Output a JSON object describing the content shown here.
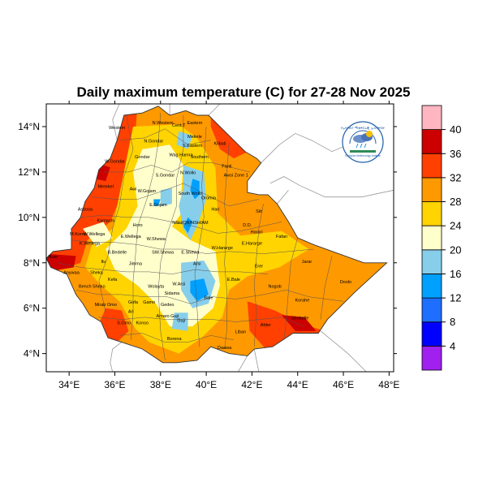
{
  "title": "Daily maximum temperature (C) for 27-28 Nov 2025",
  "map": {
    "x_ticks": [
      "34°E",
      "36°E",
      "38°E",
      "40°E",
      "42°E",
      "44°E",
      "46°E",
      "48°E"
    ],
    "y_ticks": [
      "14°N",
      "12°N",
      "10°N",
      "8°N",
      "6°N",
      "4°N"
    ],
    "lon_range": [
      33,
      48.2
    ],
    "lat_range": [
      3.2,
      15
    ],
    "ocean_color": "#ffffff",
    "border_color": "#888888"
  },
  "colorbar": {
    "labels": [
      "4",
      "8",
      "12",
      "16",
      "20",
      "24",
      "28",
      "32",
      "36",
      "40"
    ],
    "colors": [
      "#a020f0",
      "#0000ff",
      "#1e6fff",
      "#00a0ff",
      "#87ceeb",
      "#ffffcc",
      "#ffd400",
      "#ff9900",
      "#ff4000",
      "#cc0000",
      "#ffb6c1"
    ]
  },
  "logo": {
    "text_top": "የኢትዮጵያ ሚቲዎሮሎጂ ኢንስቲትዩት",
    "text_bottom": "Ethiopian Meteorology Institute",
    "icon": "weather-logo-icon"
  },
  "regions": [
    {
      "name": "Western",
      "lon": 36.1,
      "lat": 13.9
    },
    {
      "name": "N.Western",
      "lon": 38.1,
      "lat": 14.1
    },
    {
      "name": "Cent.T",
      "lon": 38.8,
      "lat": 14.0
    },
    {
      "name": "Eastern",
      "lon": 39.5,
      "lat": 14.1
    },
    {
      "name": "Mekele",
      "lon": 39.5,
      "lat": 13.5
    },
    {
      "name": "S.Eastern",
      "lon": 39.4,
      "lat": 13.1
    },
    {
      "name": "N.Gondar",
      "lon": 37.7,
      "lat": 13.3
    },
    {
      "name": "Kilbati",
      "lon": 40.6,
      "lat": 13.2
    },
    {
      "name": "Gondar",
      "lon": 37.2,
      "lat": 12.6
    },
    {
      "name": "Wag Hamra",
      "lon": 38.9,
      "lat": 12.7
    },
    {
      "name": "Southern",
      "lon": 39.7,
      "lat": 12.6
    },
    {
      "name": "Fanti",
      "lon": 40.9,
      "lat": 12.2
    },
    {
      "name": "Metekel",
      "lon": 35.6,
      "lat": 11.3
    },
    {
      "name": "W.Gondar",
      "lon": 36.0,
      "lat": 12.4
    },
    {
      "name": "S.Gondar",
      "lon": 38.2,
      "lat": 11.8
    },
    {
      "name": "N.Wollo",
      "lon": 39.2,
      "lat": 11.9
    },
    {
      "name": "Awsi Zone 1",
      "lon": 41.3,
      "lat": 11.8
    },
    {
      "name": "Awi",
      "lon": 36.8,
      "lat": 11.2
    },
    {
      "name": "W.Gojam",
      "lon": 37.4,
      "lat": 11.1
    },
    {
      "name": "South Wollo",
      "lon": 39.3,
      "lat": 11.0
    },
    {
      "name": "Oromia",
      "lon": 40.1,
      "lat": 10.8
    },
    {
      "name": "Assosa",
      "lon": 34.7,
      "lat": 10.3
    },
    {
      "name": "E.Gojam",
      "lon": 37.9,
      "lat": 10.5
    },
    {
      "name": "Hari",
      "lon": 40.4,
      "lat": 10.3
    },
    {
      "name": "Siti",
      "lon": 42.3,
      "lat": 10.2
    },
    {
      "name": "Kamashi",
      "lon": 35.6,
      "lat": 9.8
    },
    {
      "name": "Horo",
      "lon": 37.0,
      "lat": 9.6
    },
    {
      "name": "NSH/OR/NSH/AM",
      "lon": 39.3,
      "lat": 9.7
    },
    {
      "name": "D.D.",
      "lon": 41.8,
      "lat": 9.6
    },
    {
      "name": "Harari",
      "lon": 42.2,
      "lat": 9.3
    },
    {
      "name": "M.Komo",
      "lon": 34.4,
      "lat": 9.2
    },
    {
      "name": "W.Wellega",
      "lon": 35.1,
      "lat": 9.2
    },
    {
      "name": "E.Wellega",
      "lon": 36.7,
      "lat": 9.1
    },
    {
      "name": "W.Shewa",
      "lon": 37.8,
      "lat": 9.0
    },
    {
      "name": "Fafan",
      "lon": 43.3,
      "lat": 9.1
    },
    {
      "name": "K.Wellega",
      "lon": 34.9,
      "lat": 8.8
    },
    {
      "name": "W.Hararge",
      "lon": 40.7,
      "lat": 8.6
    },
    {
      "name": "E.Hararge",
      "lon": 42.0,
      "lat": 8.8
    },
    {
      "name": "B.Bedelle",
      "lon": 36.1,
      "lat": 8.4
    },
    {
      "name": "SW.Shewa",
      "lon": 38.1,
      "lat": 8.4
    },
    {
      "name": "E.Shewa",
      "lon": 39.3,
      "lat": 8.4
    },
    {
      "name": "Nuer",
      "lon": 33.3,
      "lat": 8.2
    },
    {
      "name": "Ilu",
      "lon": 35.5,
      "lat": 8.0
    },
    {
      "name": "Jimma",
      "lon": 36.9,
      "lat": 7.9
    },
    {
      "name": "Jarar",
      "lon": 44.4,
      "lat": 8.0
    },
    {
      "name": "Erer",
      "lon": 42.3,
      "lat": 7.8
    },
    {
      "name": "Anywaa",
      "lon": 34.1,
      "lat": 7.5
    },
    {
      "name": "Sheka",
      "lon": 35.2,
      "lat": 7.5
    },
    {
      "name": "Arsi",
      "lon": 39.6,
      "lat": 7.9
    },
    {
      "name": "Kefa",
      "lon": 35.9,
      "lat": 7.2
    },
    {
      "name": "Bench Sheko",
      "lon": 35.0,
      "lat": 6.9
    },
    {
      "name": "Wolayta",
      "lon": 37.8,
      "lat": 6.9
    },
    {
      "name": "W.Arsi",
      "lon": 38.8,
      "lat": 7.0
    },
    {
      "name": "E.Bale",
      "lon": 41.2,
      "lat": 7.2
    },
    {
      "name": "Nogob",
      "lon": 43.0,
      "lat": 6.9
    },
    {
      "name": "Doolo",
      "lon": 46.1,
      "lat": 7.1
    },
    {
      "name": "Sidama",
      "lon": 38.5,
      "lat": 6.6
    },
    {
      "name": "Bale",
      "lon": 40.1,
      "lat": 6.4
    },
    {
      "name": "Mirab Omo",
      "lon": 35.6,
      "lat": 6.1
    },
    {
      "name": "Gofa",
      "lon": 36.8,
      "lat": 6.2
    },
    {
      "name": "Gamo",
      "lon": 37.5,
      "lat": 6.2
    },
    {
      "name": "Gedeo",
      "lon": 38.3,
      "lat": 6.1
    },
    {
      "name": "Korahe",
      "lon": 44.2,
      "lat": 6.3
    },
    {
      "name": "Ari",
      "lon": 36.7,
      "lat": 5.8
    },
    {
      "name": "Amaro Guji",
      "lon": 38.3,
      "lat": 5.6
    },
    {
      "name": "Shebelle",
      "lon": 44.1,
      "lat": 5.5
    },
    {
      "name": "S.Omo",
      "lon": 36.4,
      "lat": 5.3
    },
    {
      "name": "Konso",
      "lon": 37.2,
      "lat": 5.3
    },
    {
      "name": "Guji",
      "lon": 38.9,
      "lat": 5.4
    },
    {
      "name": "Afder",
      "lon": 42.6,
      "lat": 5.2
    },
    {
      "name": "Liban",
      "lon": 41.5,
      "lat": 4.9
    },
    {
      "name": "Borena",
      "lon": 38.6,
      "lat": 4.6
    },
    {
      "name": "Daawa",
      "lon": 40.8,
      "lat": 4.2
    }
  ]
}
